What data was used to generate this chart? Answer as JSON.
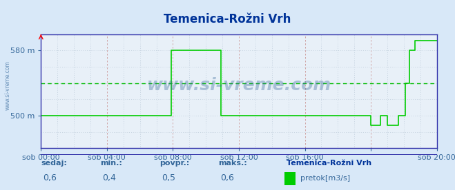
{
  "title": "Temenica-Rožni Vrh",
  "bg_color": "#d8e8f8",
  "plot_bg_color": "#e8f0f8",
  "line_color": "#00cc00",
  "dashed_line_color": "#00bb00",
  "dashed_line_value": 0.5,
  "ylabel_ticks": [
    "500 m",
    "580 m"
  ],
  "ytick_values": [
    0.4,
    0.6
  ],
  "ylim": [
    0.3,
    0.65
  ],
  "xlim": [
    0,
    288
  ],
  "x_tick_positions": [
    0,
    48,
    96,
    144,
    192,
    240,
    288
  ],
  "x_tick_labels": [
    "sob 00:00",
    "sob 04:00",
    "sob 08:00",
    "sob 12:00",
    "sob 16:00",
    "",
    "sob 20:00"
  ],
  "watermark": "www.si-vreme.com",
  "footer_labels": [
    "sedaj:",
    "min.:",
    "povpr.:",
    "maks.:"
  ],
  "footer_values": [
    "0,6",
    "0,4",
    "0,5",
    "0,6"
  ],
  "footer_station": "Temenica-Rožni Vrh",
  "footer_legend_label": "pretok[m3/s]",
  "footer_legend_color": "#00cc00",
  "data_x": [
    0,
    47,
    47,
    95,
    95,
    107,
    107,
    131,
    131,
    240,
    240,
    247,
    247,
    252,
    252,
    260,
    260,
    265,
    265,
    268,
    268,
    272,
    272,
    288
  ],
  "data_y": [
    0.4,
    0.4,
    0.4,
    0.4,
    0.6,
    0.6,
    0.6,
    0.6,
    0.4,
    0.4,
    0.37,
    0.37,
    0.4,
    0.4,
    0.37,
    0.37,
    0.4,
    0.4,
    0.5,
    0.5,
    0.6,
    0.6,
    0.63,
    0.63
  ],
  "title_color": "#003399",
  "axis_color": "#3333aa",
  "tick_color": "#336699",
  "grid_color_major": "#cc9999",
  "grid_color_minor": "#aabbcc",
  "sidebar_text": "www.si-vreme.com",
  "sidebar_color": "#336699"
}
